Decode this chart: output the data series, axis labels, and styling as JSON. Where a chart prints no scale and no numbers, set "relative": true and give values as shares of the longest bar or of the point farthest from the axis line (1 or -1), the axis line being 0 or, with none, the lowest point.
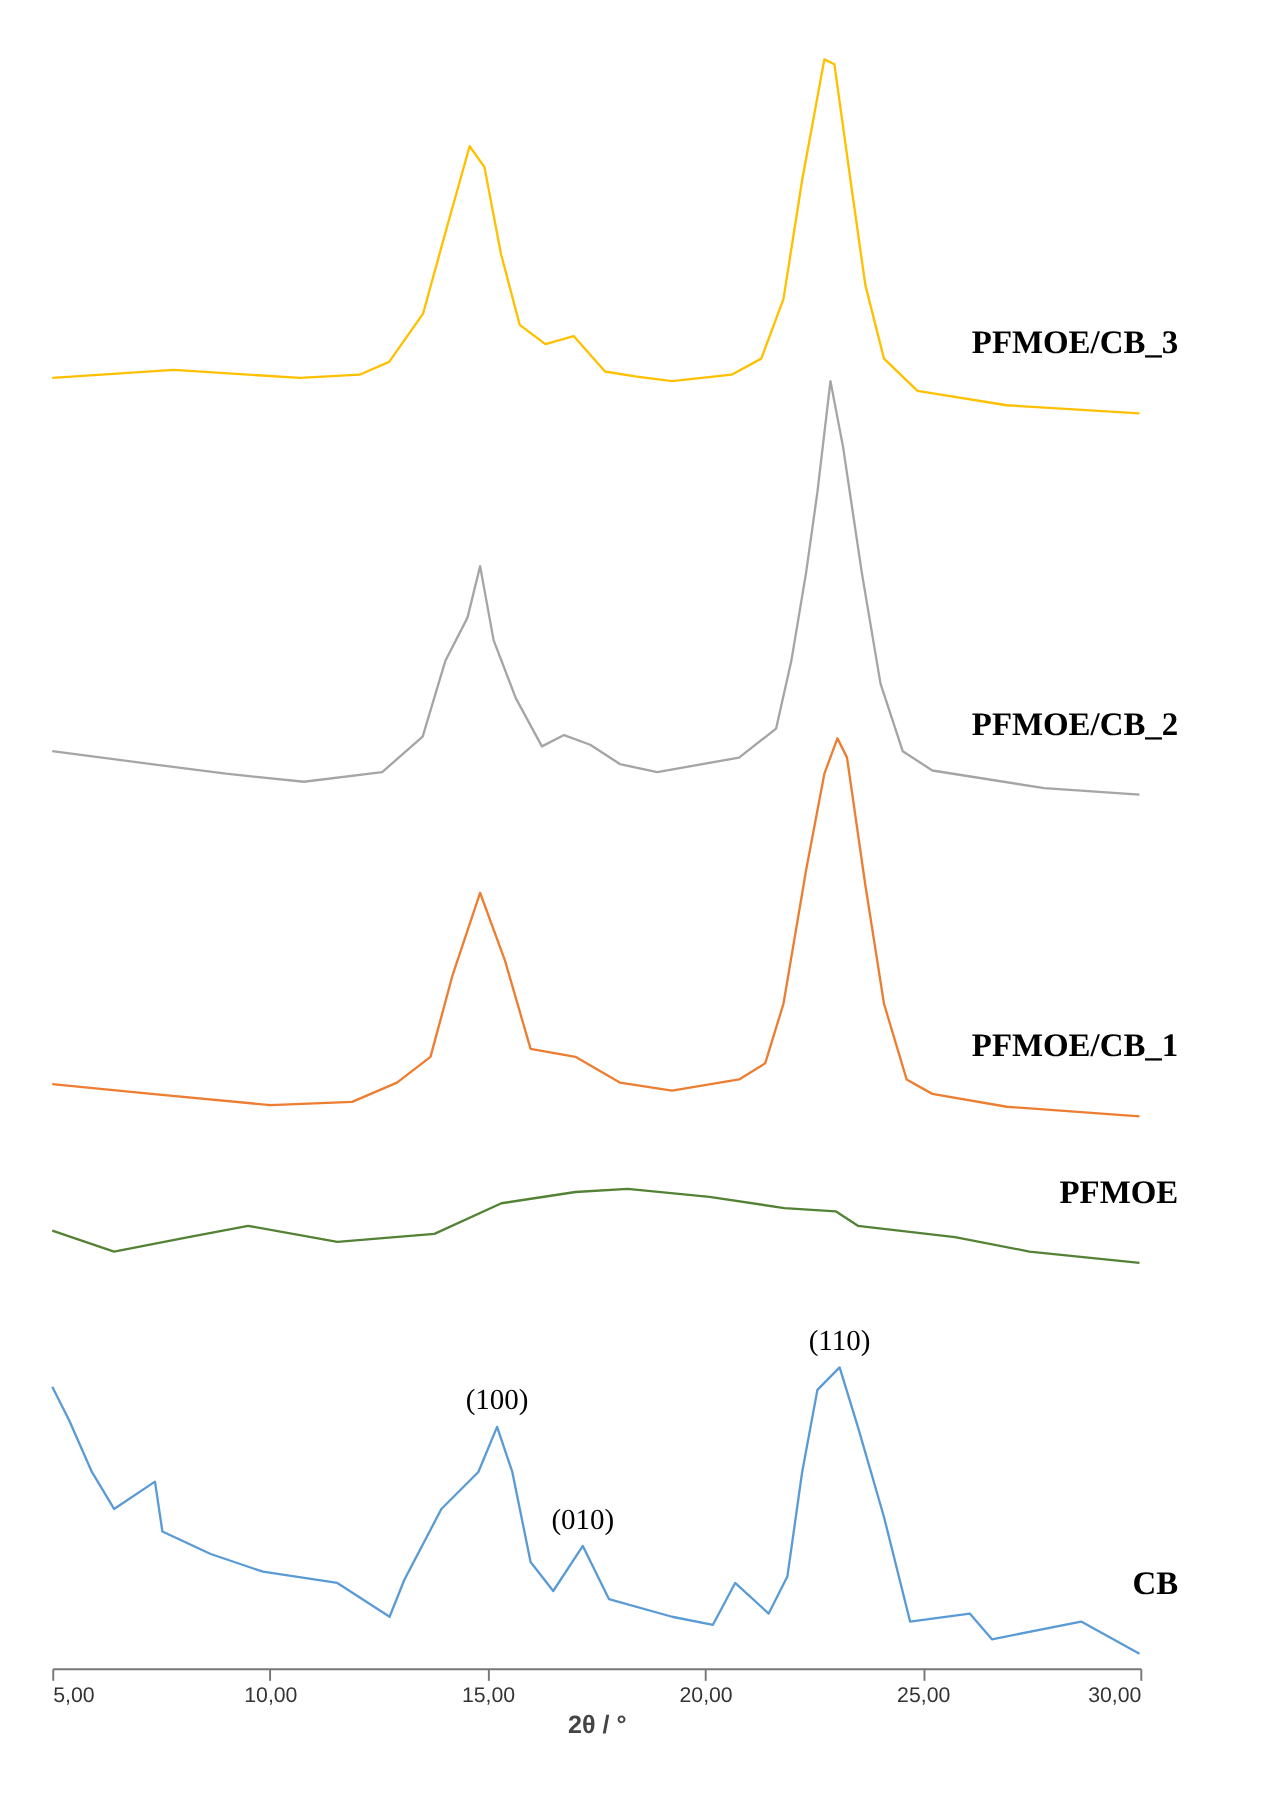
{
  "chart_data": {
    "type": "line",
    "relative": true,
    "xlabel": "2θ / °",
    "xlim": [
      5,
      30
    ],
    "xticks": [
      {
        "value": 5,
        "label": "5,00"
      },
      {
        "value": 10,
        "label": "10,00"
      },
      {
        "value": 15,
        "label": "15,00"
      },
      {
        "value": 20,
        "label": "20,00"
      },
      {
        "value": 25,
        "label": "25,00"
      },
      {
        "value": 30,
        "label": "30,00"
      }
    ],
    "series": [
      {
        "name": "PFMOE/CB_3",
        "color": "#ffc000",
        "x": [
          5.0,
          7.79,
          10.69,
          12.06,
          12.74,
          13.52,
          14.04,
          14.59,
          14.93,
          15.31,
          15.74,
          16.33,
          16.98,
          17.7,
          18.39,
          19.24,
          20.61,
          21.29,
          21.8,
          22.23,
          22.74,
          22.97,
          23.34,
          23.68,
          24.11,
          24.88,
          26.93,
          29.98
        ],
        "values": [
          0.802,
          0.807,
          0.802,
          0.804,
          0.812,
          0.842,
          0.893,
          0.946,
          0.933,
          0.879,
          0.835,
          0.823,
          0.828,
          0.806,
          0.803,
          0.8,
          0.804,
          0.814,
          0.851,
          0.925,
          1.0,
          0.997,
          0.925,
          0.86,
          0.814,
          0.794,
          0.785,
          0.78
        ]
      },
      {
        "name": "PFMOE/CB_2",
        "color": "#a5a5a5",
        "x": [
          5.0,
          7.28,
          8.99,
          10.78,
          12.58,
          13.51,
          14.03,
          14.54,
          14.83,
          15.14,
          15.65,
          16.25,
          16.76,
          17.36,
          18.04,
          18.9,
          20.78,
          21.63,
          21.98,
          22.32,
          22.58,
          22.88,
          23.17,
          23.6,
          24.03,
          24.54,
          25.22,
          27.79,
          29.98
        ],
        "values": [
          0.57,
          0.562,
          0.556,
          0.551,
          0.557,
          0.579,
          0.626,
          0.653,
          0.685,
          0.639,
          0.603,
          0.573,
          0.58,
          0.574,
          0.562,
          0.557,
          0.566,
          0.584,
          0.626,
          0.681,
          0.731,
          0.8,
          0.759,
          0.681,
          0.612,
          0.57,
          0.558,
          0.547,
          0.543
        ]
      },
      {
        "name": "PFMOE/CB_1",
        "color": "#ed7d31",
        "x": [
          5.0,
          7.28,
          10.01,
          11.89,
          12.92,
          13.69,
          14.2,
          14.83,
          15.4,
          15.99,
          17.02,
          18.04,
          19.24,
          20.78,
          21.38,
          21.8,
          22.32,
          22.74,
          23.04,
          23.26,
          23.68,
          24.11,
          24.63,
          25.22,
          26.93,
          29.98
        ],
        "values": [
          0.363,
          0.357,
          0.35,
          0.352,
          0.364,
          0.38,
          0.431,
          0.482,
          0.44,
          0.385,
          0.38,
          0.364,
          0.359,
          0.366,
          0.376,
          0.413,
          0.496,
          0.556,
          0.578,
          0.566,
          0.487,
          0.413,
          0.366,
          0.357,
          0.349,
          0.343
        ]
      },
      {
        "name": "PFMOE",
        "color": "#548235",
        "x": [
          5.0,
          6.42,
          8.13,
          9.5,
          11.55,
          13.78,
          15.32,
          17.02,
          18.22,
          20.1,
          21.82,
          23.0,
          23.51,
          25.74,
          27.45,
          29.98
        ],
        "values": [
          0.272,
          0.259,
          0.268,
          0.275,
          0.265,
          0.27,
          0.289,
          0.296,
          0.298,
          0.293,
          0.286,
          0.284,
          0.275,
          0.268,
          0.259,
          0.252
        ]
      },
      {
        "name": "CB",
        "color": "#5b9bd5",
        "x": [
          5.0,
          5.39,
          5.91,
          6.42,
          7.36,
          7.53,
          8.64,
          9.84,
          11.55,
          12.75,
          13.09,
          13.94,
          14.79,
          15.22,
          15.57,
          15.99,
          16.51,
          17.19,
          17.79,
          19.24,
          20.18,
          20.69,
          21.46,
          21.89,
          22.23,
          22.58,
          23.09,
          23.51,
          24.11,
          24.71,
          26.08,
          26.59,
          28.64,
          29.98
        ],
        "values": [
          0.175,
          0.154,
          0.122,
          0.099,
          0.116,
          0.085,
          0.071,
          0.06,
          0.053,
          0.032,
          0.055,
          0.099,
          0.122,
          0.15,
          0.122,
          0.066,
          0.048,
          0.076,
          0.043,
          0.032,
          0.027,
          0.053,
          0.034,
          0.057,
          0.122,
          0.173,
          0.187,
          0.15,
          0.094,
          0.029,
          0.034,
          0.018,
          0.029,
          0.009
        ]
      }
    ],
    "annotations": [
      {
        "text": "(100)",
        "x": 15.22,
        "y": 0.15
      },
      {
        "text": "(010)",
        "x": 17.19,
        "y": 0.076
      },
      {
        "text": "(110)",
        "x": 23.09,
        "y": 0.187
      }
    ]
  }
}
